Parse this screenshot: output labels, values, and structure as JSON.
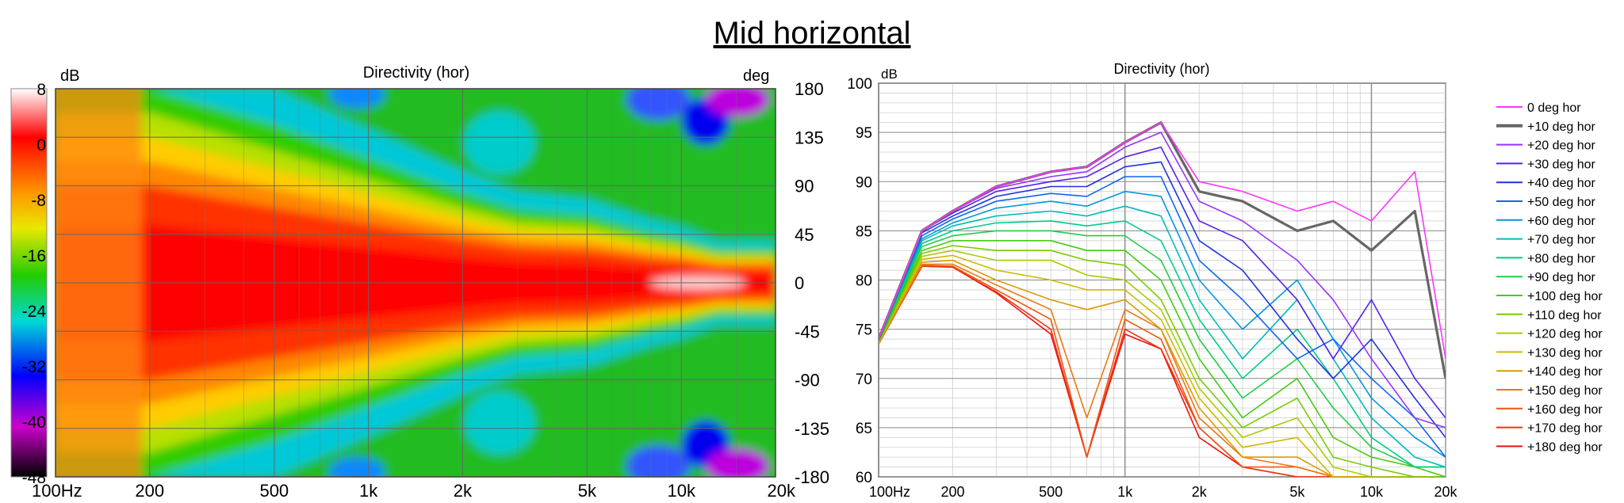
{
  "page_title": "Mid horizontal",
  "chart_data": [
    {
      "type": "heatmap",
      "title": "Directivity (hor)",
      "colorbar_unit": "dB",
      "y_unit": "deg",
      "x_scale": "log",
      "xlim": [
        100,
        20000
      ],
      "ylim": [
        -180,
        180
      ],
      "color_range": [
        -48,
        8
      ],
      "x_ticks": [
        {
          "v": 100,
          "l": "100Hz"
        },
        {
          "v": 200,
          "l": "200"
        },
        {
          "v": 500,
          "l": "500"
        },
        {
          "v": 1000,
          "l": "1k"
        },
        {
          "v": 2000,
          "l": "2k"
        },
        {
          "v": 5000,
          "l": "5k"
        },
        {
          "v": 10000,
          "l": "10k"
        },
        {
          "v": 20000,
          "l": "20k"
        }
      ],
      "y_ticks": [
        180,
        135,
        90,
        45,
        0,
        -45,
        -90,
        -135,
        -180
      ],
      "colorbar_ticks": [
        8,
        0,
        -8,
        -16,
        -24,
        -32,
        -40,
        -48
      ],
      "colormap": [
        "#ffffff",
        "#ff0000",
        "#ff9900",
        "#e8e800",
        "#22cc00",
        "#00d8d8",
        "#0000ff",
        "#cc00cc",
        "#000000"
      ],
      "grid": true,
      "description_values": {
        "freq_hz": [
          100,
          200,
          500,
          1000,
          2000,
          3000,
          5000,
          8000,
          10000,
          13000,
          20000
        ],
        "neg6dB_beamwidth_deg": [
          180,
          180,
          140,
          110,
          80,
          65,
          60,
          45,
          40,
          30,
          30
        ]
      }
    },
    {
      "type": "line",
      "title": "Directivity (hor)",
      "ylabel": "dB",
      "x_scale": "log",
      "xlim": [
        100,
        20000
      ],
      "ylim": [
        60,
        100
      ],
      "grid": true,
      "legend_position": "right",
      "x_ticks": [
        {
          "v": 100,
          "l": "100Hz"
        },
        {
          "v": 200,
          "l": "200"
        },
        {
          "v": 500,
          "l": "500"
        },
        {
          "v": 1000,
          "l": "1k"
        },
        {
          "v": 2000,
          "l": "2k"
        },
        {
          "v": 5000,
          "l": "5k"
        },
        {
          "v": 10000,
          "l": "10k"
        },
        {
          "v": 20000,
          "l": "20k"
        }
      ],
      "y_ticks": [
        60,
        65,
        70,
        75,
        80,
        85,
        90,
        95,
        100
      ],
      "x": [
        100,
        150,
        200,
        300,
        500,
        700,
        1000,
        1400,
        2000,
        3000,
        5000,
        7000,
        10000,
        15000,
        20000
      ],
      "series": [
        {
          "name": "0 deg hor",
          "color": "#ff33ff",
          "values": [
            74,
            85,
            87,
            89.5,
            91,
            91.5,
            94,
            96,
            90,
            89,
            87,
            88,
            86,
            91,
            72
          ]
        },
        {
          "name": "+10 deg hor",
          "color": "#666666",
          "values": [
            74,
            85,
            87,
            89.5,
            91,
            91.5,
            94,
            96,
            89,
            88,
            85,
            86,
            83,
            87,
            70
          ]
        },
        {
          "name": "+20 deg hor",
          "color": "#9933ff",
          "values": [
            74,
            85,
            87,
            89.3,
            90.5,
            91,
            93.5,
            95,
            88,
            86,
            82,
            78,
            72,
            66,
            65
          ]
        },
        {
          "name": "+30 deg hor",
          "color": "#5522ee",
          "values": [
            74,
            85,
            86.8,
            89,
            90,
            90.5,
            92.5,
            93.5,
            86,
            84,
            78,
            72,
            78,
            70,
            66
          ]
        },
        {
          "name": "+40 deg hor",
          "color": "#2233dd",
          "values": [
            74,
            84.8,
            86.5,
            88.5,
            89.5,
            89.5,
            91.5,
            92,
            84,
            81,
            74,
            70,
            74,
            68,
            64
          ]
        },
        {
          "name": "+50 deg hor",
          "color": "#1166ee",
          "values": [
            74,
            84.5,
            86.2,
            88,
            88.8,
            88.5,
            90.5,
            90.5,
            82,
            78,
            72,
            74,
            70,
            66,
            62
          ]
        },
        {
          "name": "+60 deg hor",
          "color": "#0099dd",
          "values": [
            74,
            84.2,
            85.8,
            87.3,
            88,
            87.5,
            89,
            88.5,
            80,
            75,
            80,
            74,
            68,
            64,
            62
          ]
        },
        {
          "name": "+70 deg hor",
          "color": "#00bbbb",
          "values": [
            74,
            84,
            85.5,
            86.5,
            87,
            86.5,
            87.5,
            86.5,
            78,
            72,
            78,
            72,
            66,
            62,
            61
          ]
        },
        {
          "name": "+80 deg hor",
          "color": "#00cc88",
          "values": [
            74,
            83.7,
            85,
            85.8,
            86,
            85.5,
            86,
            84,
            76,
            70,
            75,
            70,
            64,
            61,
            61
          ]
        },
        {
          "name": "+90 deg hor",
          "color": "#22cc44",
          "values": [
            73.8,
            83.4,
            84.5,
            85,
            85,
            84.5,
            84.5,
            82,
            74,
            68,
            72,
            67,
            63,
            61,
            61
          ]
        },
        {
          "name": "+100 deg hor",
          "color": "#44cc11",
          "values": [
            73.8,
            83,
            84,
            84,
            84,
            83,
            83,
            80,
            72,
            66,
            70,
            64,
            62,
            61,
            60
          ]
        },
        {
          "name": "+110 deg hor",
          "color": "#77cc00",
          "values": [
            73.7,
            82.7,
            83.5,
            83,
            83,
            82,
            81.5,
            78,
            70,
            65,
            68,
            62,
            61,
            60,
            60
          ]
        },
        {
          "name": "+120 deg hor",
          "color": "#aacc00",
          "values": [
            73.7,
            82.4,
            83,
            82,
            82,
            80.5,
            80,
            77,
            69,
            64,
            66,
            61,
            60,
            60,
            60
          ]
        },
        {
          "name": "+130 deg hor",
          "color": "#ccbb00",
          "values": [
            73.6,
            82.1,
            82.5,
            81,
            80,
            79,
            79,
            76,
            68,
            63,
            64,
            60,
            60,
            60,
            60
          ]
        },
        {
          "name": "+140 deg hor",
          "color": "#dd9900",
          "values": [
            73.6,
            81.8,
            82,
            80,
            78,
            77,
            78,
            75,
            67,
            62,
            62,
            60,
            60,
            60,
            60
          ]
        },
        {
          "name": "+150 deg hor",
          "color": "#ee7711",
          "values": [
            73.5,
            81.6,
            81.6,
            79.5,
            77,
            66,
            77,
            75,
            66,
            62,
            61,
            60,
            60,
            60,
            60
          ]
        },
        {
          "name": "+160 deg hor",
          "color": "#ee5511",
          "values": [
            73.5,
            81.5,
            81.4,
            79,
            76,
            62,
            76,
            74,
            65,
            61,
            61,
            60,
            60,
            60,
            60
          ]
        },
        {
          "name": "+170 deg hor",
          "color": "#ee3311",
          "values": [
            73.5,
            81.4,
            81.3,
            78.8,
            75,
            62,
            75,
            73,
            65,
            61,
            60,
            60,
            60,
            60,
            60
          ]
        },
        {
          "name": "+180 deg hor",
          "color": "#ee1111",
          "values": [
            73.5,
            81.4,
            81.3,
            78.7,
            74.5,
            62,
            74.5,
            73,
            64,
            61,
            60,
            60,
            60,
            60,
            60
          ]
        }
      ]
    }
  ]
}
